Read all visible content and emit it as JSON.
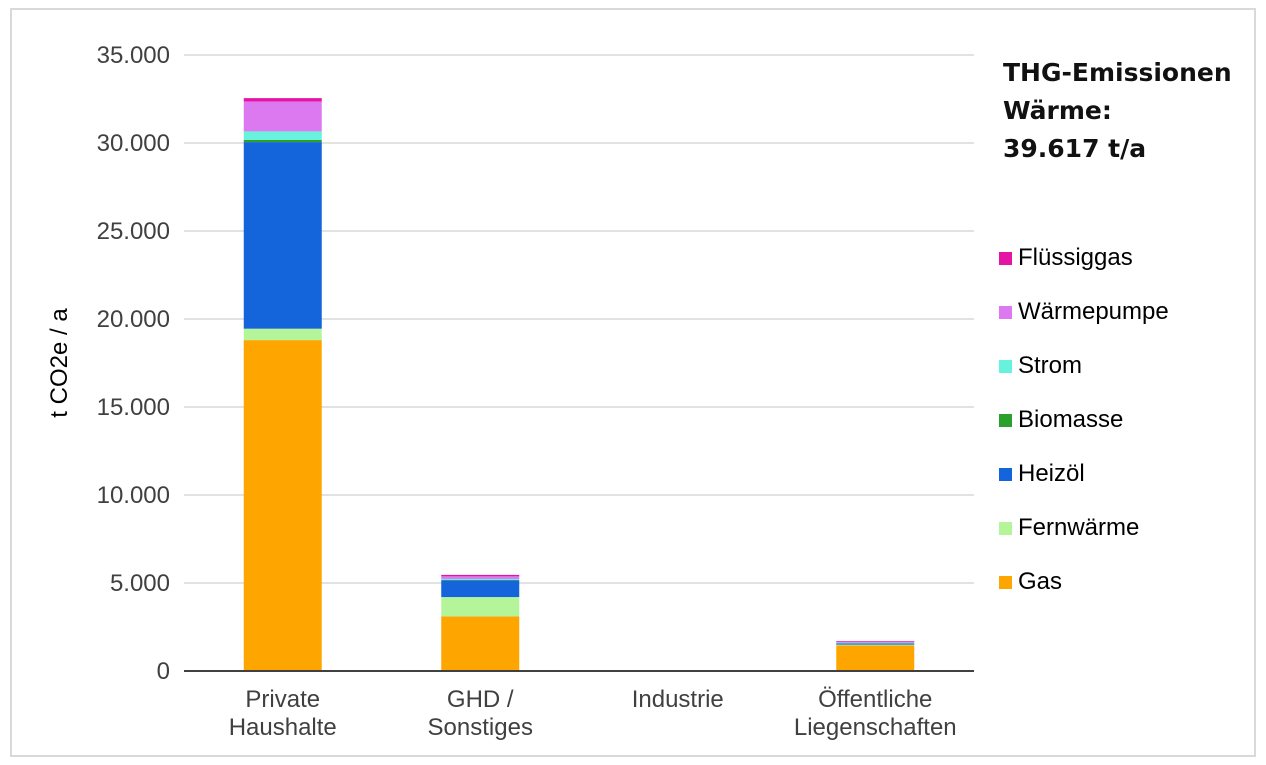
{
  "chart_data": {
    "type": "bar",
    "stacked": true,
    "categories": [
      [
        "Private",
        "Haushalte"
      ],
      [
        "GHD /",
        "Sonstiges"
      ],
      [
        "Industrie"
      ],
      [
        "Öffentliche",
        "Liegenschaften"
      ]
    ],
    "ylabel": "t CO2e / a",
    "ylim": [
      0,
      35000
    ],
    "yticks": [
      0,
      5000,
      10000,
      15000,
      20000,
      25000,
      30000,
      35000
    ],
    "ytick_labels": [
      "0",
      "5.000",
      "10.000",
      "15.000",
      "20.000",
      "25.000",
      "30.000",
      "35.000"
    ],
    "grid": true,
    "legend_position": "right",
    "series": [
      {
        "name": "Gas",
        "color": "#ffa500",
        "values": [
          18800,
          3100,
          0,
          1450
        ]
      },
      {
        "name": "Fernwärme",
        "color": "#b5f59a",
        "values": [
          650,
          1100,
          0,
          50
        ]
      },
      {
        "name": "Heizöl",
        "color": "#1464dc",
        "values": [
          10600,
          950,
          0,
          70
        ]
      },
      {
        "name": "Biomasse",
        "color": "#2ca02c",
        "values": [
          130,
          20,
          0,
          0
        ]
      },
      {
        "name": "Strom",
        "color": "#66f2dc",
        "values": [
          480,
          60,
          0,
          40
        ]
      },
      {
        "name": "Wärmepumpe",
        "color": "#dc78f0",
        "values": [
          1700,
          150,
          0,
          50
        ]
      },
      {
        "name": "Flüssiggas",
        "color": "#e614a5",
        "values": [
          190,
          80,
          0,
          40
        ]
      }
    ],
    "annotation": [
      "THG-Emissionen",
      "Wärme:",
      "39.617 t/a"
    ]
  }
}
